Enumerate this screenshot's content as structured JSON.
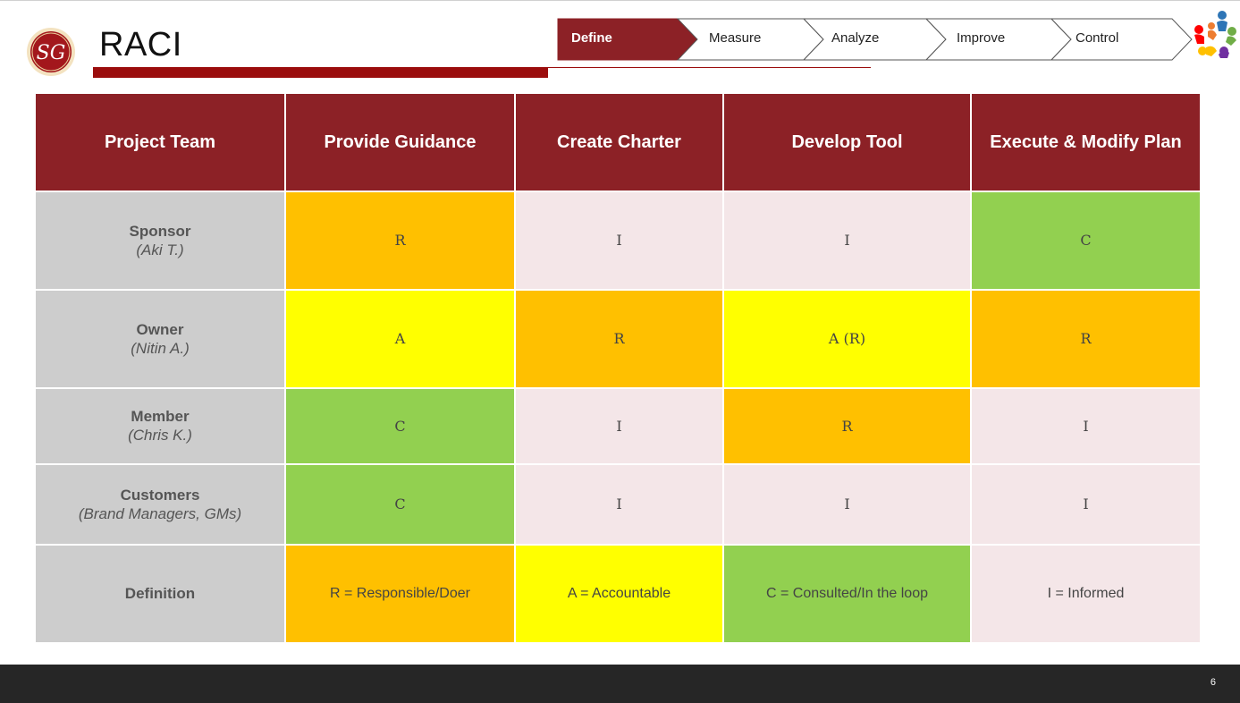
{
  "header": {
    "title": "RACI",
    "logo_text": "SG",
    "phases": [
      {
        "label": "Define",
        "active": true
      },
      {
        "label": "Measure",
        "active": false
      },
      {
        "label": "Analyze",
        "active": false
      },
      {
        "label": "Improve",
        "active": false
      },
      {
        "label": "Control",
        "active": false
      }
    ]
  },
  "table": {
    "columns": [
      "Project Team",
      "Provide Guidance",
      "Create Charter",
      "Develop Tool",
      "Execute & Modify Plan"
    ],
    "rows": [
      {
        "role": "Sponsor",
        "person": "(Aki T.)",
        "cells": [
          "R",
          "I",
          "I",
          "C"
        ]
      },
      {
        "role": "Owner",
        "person": "(Nitin A.)",
        "cells": [
          "A",
          "R",
          "A (R)",
          "R"
        ]
      },
      {
        "role": "Member",
        "person": "(Chris K.)",
        "cells": [
          "C",
          "I",
          "R",
          "I"
        ]
      },
      {
        "role": "Customers",
        "person": "(Brand Managers, GMs)",
        "cells": [
          "C",
          "I",
          "I",
          "I"
        ]
      }
    ],
    "definition": {
      "label": "Definition",
      "cells": [
        "R = Responsible/Doer",
        "A = Accountable",
        "C = Consulted/In the loop",
        "I = Informed"
      ]
    }
  },
  "colors": {
    "header_red": "#8c2126",
    "responsible": "#ffc000",
    "accountable": "#ffff00",
    "consulted": "#92d050",
    "informed": "#f4e6e8",
    "role_gray": "#cdcdcd"
  },
  "icons": [
    "sg-logo-icon",
    "team-people-icon"
  ],
  "footer": {
    "page_number": "6"
  }
}
